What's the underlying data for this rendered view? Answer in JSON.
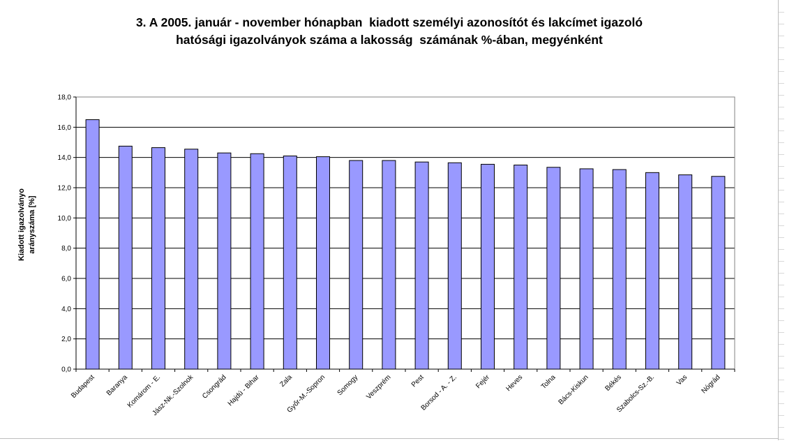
{
  "chart_data": {
    "type": "bar",
    "title": "3. A 2005. január - november hónapban  kiadott személyi azonosítót és lakcímet igazoló\nhatósági igazolványok száma a lakosság  számának %-ában, megyénként",
    "title_lines": [
      "3. A 2005. január - november hónapban  kiadott személyi azonosítót és lakcímet igazoló",
      "hatósági igazolványok száma a lakosság  számának %-ában, megyénként"
    ],
    "ylabel_lines": [
      "Kiadott igazolványo",
      "arányszáma [%]"
    ],
    "xlabel": "",
    "ylim": [
      0,
      18
    ],
    "yticks": [
      "0,0",
      "2,0",
      "4,0",
      "6,0",
      "8,0",
      "10,0",
      "12,0",
      "14,0",
      "16,0",
      "18,0"
    ],
    "grid": true,
    "legend": "none",
    "bar_color": "#9999ff",
    "categories": [
      "Budapest",
      "Baranya",
      "Komárom - E.",
      "Jász-Nk.-Szolnok",
      "Csongrád",
      "Hajdú - Bihar",
      "Zala",
      "Győr-M.-Sopron",
      "Somogy",
      "Veszprém",
      "Pest",
      "Borsod - A. - Z.",
      "Fejér",
      "Heves",
      "Tolna",
      "Bács-Kiskun",
      "Békés",
      "Szabolcs-Sz.-B.",
      "Vas",
      "Nógrád"
    ],
    "values": [
      16.5,
      14.75,
      14.65,
      14.55,
      14.3,
      14.25,
      14.1,
      14.05,
      13.8,
      13.8,
      13.7,
      13.65,
      13.55,
      13.5,
      13.35,
      13.25,
      13.2,
      13.0,
      12.85,
      12.75
    ]
  }
}
